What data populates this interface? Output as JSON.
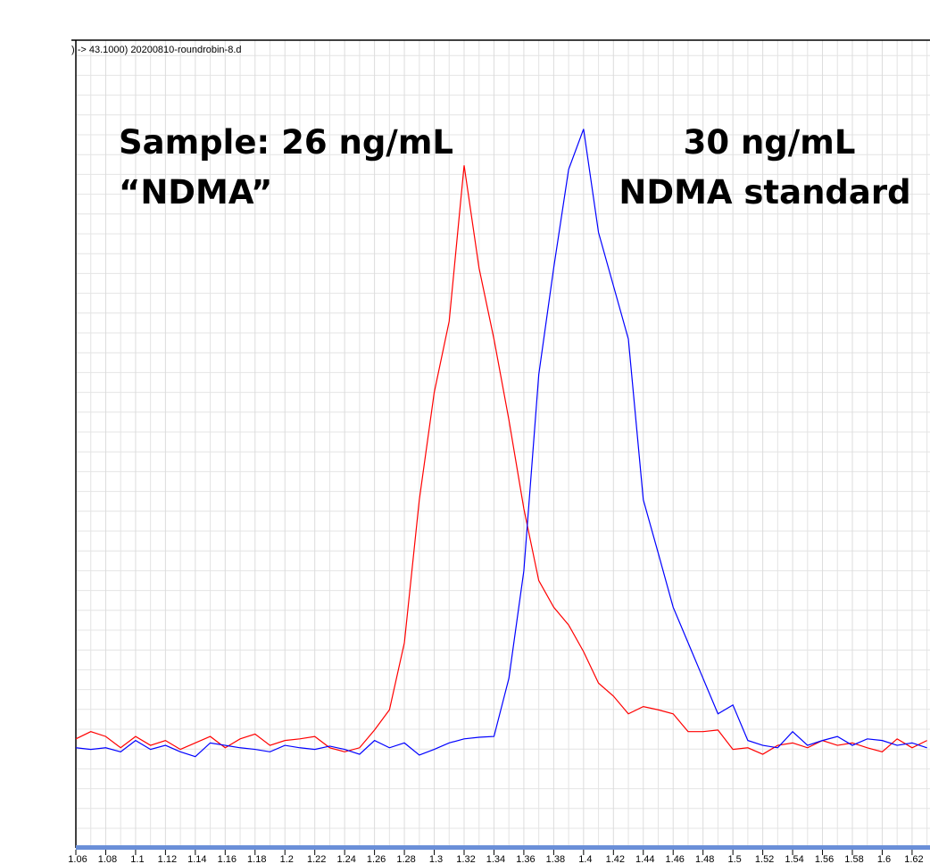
{
  "chart_data": {
    "type": "line",
    "title": ") -> 43.1000) 20200810-roundrobin-8.d",
    "annotations": [
      "Sample: 26 ng/mL",
      "“NDMA”",
      "30 ng/mL",
      "NDMA standard"
    ],
    "x": [
      1.06,
      1.07,
      1.08,
      1.09,
      1.1,
      1.11,
      1.12,
      1.13,
      1.14,
      1.15,
      1.16,
      1.17,
      1.18,
      1.19,
      1.2,
      1.21,
      1.22,
      1.23,
      1.24,
      1.25,
      1.26,
      1.27,
      1.28,
      1.29,
      1.3,
      1.31,
      1.32,
      1.33,
      1.34,
      1.35,
      1.36,
      1.37,
      1.38,
      1.39,
      1.4,
      1.41,
      1.42,
      1.43,
      1.44,
      1.45,
      1.46,
      1.47,
      1.48,
      1.49,
      1.5,
      1.51,
      1.52,
      1.53,
      1.54,
      1.55,
      1.56,
      1.57,
      1.58,
      1.59,
      1.6,
      1.61,
      1.62,
      1.63
    ],
    "series": [
      {
        "color": "#ff0000",
        "values": [
          13.5,
          14.4,
          13.8,
          12.4,
          13.8,
          12.7,
          13.3,
          12.2,
          13.0,
          13.8,
          12.4,
          13.5,
          14.1,
          12.7,
          13.3,
          13.5,
          13.8,
          12.4,
          11.9,
          12.4,
          14.6,
          17.1,
          25.4,
          43.1,
          56.4,
          65.2,
          84.5,
          71.8,
          63.0,
          53.0,
          42.0,
          33.1,
          29.8,
          27.6,
          24.3,
          20.4,
          18.8,
          16.6,
          17.5,
          17.1,
          16.6,
          14.4,
          14.4,
          14.6,
          12.2,
          12.4,
          11.6,
          12.7,
          13.0,
          12.4,
          13.3,
          12.7,
          13.0,
          12.4,
          11.9,
          13.5,
          12.4,
          13.3
        ]
      },
      {
        "color": "#0000ff",
        "values": [
          12.4,
          12.2,
          12.4,
          11.9,
          13.3,
          12.2,
          12.7,
          11.9,
          11.3,
          13.0,
          12.7,
          12.4,
          12.2,
          11.9,
          12.7,
          12.4,
          12.2,
          12.6,
          12.2,
          11.6,
          13.3,
          12.4,
          13.0,
          11.5,
          12.2,
          13.0,
          13.5,
          13.7,
          13.8,
          21.0,
          34.3,
          58.6,
          71.8,
          84.0,
          89.0,
          76.2,
          69.6,
          63.0,
          43.1,
          36.5,
          29.8,
          25.4,
          21.0,
          16.6,
          17.7,
          13.3,
          12.7,
          12.4,
          14.4,
          12.7,
          13.3,
          13.8,
          12.7,
          13.5,
          13.3,
          12.7,
          13.0,
          12.4
        ]
      }
    ],
    "xlim": [
      1.06,
      1.632
    ],
    "xticks": [
      1.06,
      1.08,
      1.1,
      1.12,
      1.14,
      1.16,
      1.18,
      1.2,
      1.22,
      1.24,
      1.26,
      1.28,
      1.3,
      1.32,
      1.34,
      1.36,
      1.38,
      1.4,
      1.42,
      1.44,
      1.46,
      1.48,
      1.5,
      1.52,
      1.54,
      1.56,
      1.58,
      1.6,
      1.62
    ],
    "ylim": [
      0,
      100
    ],
    "grid": true
  }
}
